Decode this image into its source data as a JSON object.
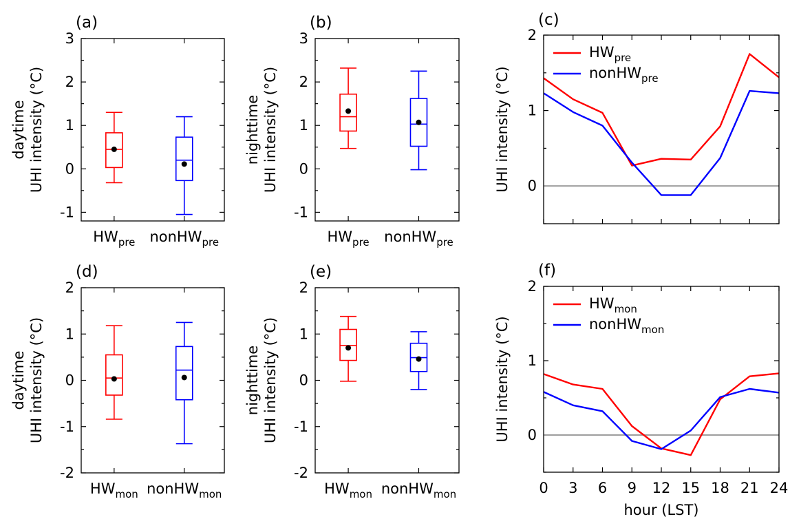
{
  "chart_data": [
    {
      "panel": "(a)",
      "type": "box",
      "ylabel": [
        "daytime",
        "UHI intensity (°C)"
      ],
      "ylim": [
        -1.2,
        3
      ],
      "yticks": [
        -1,
        0,
        1,
        2,
        3
      ],
      "ytick_labels": [
        "-1",
        "0",
        "1",
        "2",
        "3"
      ],
      "groups": [
        {
          "label": "HW",
          "sub": "pre",
          "color": "#ff0000",
          "whisker_low": -0.32,
          "q1": 0.03,
          "median": 0.45,
          "q3": 0.83,
          "whisker_high": 1.3,
          "mean": 0.45
        },
        {
          "label": "nonHW",
          "sub": "pre",
          "color": "#0000ff",
          "whisker_low": -1.05,
          "q1": -0.27,
          "median": 0.2,
          "q3": 0.73,
          "whisker_high": 1.2,
          "mean": 0.11
        }
      ]
    },
    {
      "panel": "(b)",
      "type": "box",
      "ylabel": [
        "nighttime",
        "UHI intensity (°C)"
      ],
      "ylim": [
        -1.2,
        3
      ],
      "yticks": [
        -1,
        0,
        1,
        2,
        3
      ],
      "ytick_labels": [
        "-1",
        "0",
        "1",
        "2",
        "3"
      ],
      "groups": [
        {
          "label": "HW",
          "sub": "pre",
          "color": "#ff0000",
          "whisker_low": 0.47,
          "q1": 0.87,
          "median": 1.2,
          "q3": 1.72,
          "whisker_high": 2.32,
          "mean": 1.33
        },
        {
          "label": "nonHW",
          "sub": "pre",
          "color": "#0000ff",
          "whisker_low": -0.02,
          "q1": 0.52,
          "median": 1.03,
          "q3": 1.62,
          "whisker_high": 2.25,
          "mean": 1.07
        }
      ]
    },
    {
      "panel": "(c)",
      "type": "line",
      "ylabel": "UHI intensity (°C)",
      "ylim": [
        -0.5,
        2
      ],
      "yticks": [
        0,
        1,
        2
      ],
      "ytick_labels": [
        "0",
        "1",
        "2"
      ],
      "x": [
        0,
        3,
        6,
        9,
        12,
        15,
        18,
        21,
        24
      ],
      "xlim": [
        0,
        24
      ],
      "series": [
        {
          "name": "HW",
          "sub": "pre",
          "color": "#ff0000",
          "values": [
            1.43,
            1.15,
            0.97,
            0.27,
            0.36,
            0.35,
            0.79,
            1.75,
            1.44
          ]
        },
        {
          "name": "nonHW",
          "sub": "pre",
          "color": "#0000ff",
          "values": [
            1.23,
            0.98,
            0.8,
            0.31,
            -0.12,
            -0.12,
            0.37,
            1.26,
            1.23
          ]
        }
      ]
    },
    {
      "panel": "(d)",
      "type": "box",
      "ylabel": [
        "daytime",
        "UHI intensity (°C)"
      ],
      "ylim": [
        -2,
        2
      ],
      "yticks": [
        -2,
        -1,
        0,
        1,
        2
      ],
      "ytick_labels": [
        "-2",
        "-1",
        "0",
        "1",
        "2"
      ],
      "groups": [
        {
          "label": "HW",
          "sub": "mon",
          "color": "#ff0000",
          "whisker_low": -0.84,
          "q1": -0.32,
          "median": 0.05,
          "q3": 0.55,
          "whisker_high": 1.18,
          "mean": 0.03
        },
        {
          "label": "nonHW",
          "sub": "mon",
          "color": "#0000ff",
          "whisker_low": -1.37,
          "q1": -0.42,
          "median": 0.22,
          "q3": 0.73,
          "whisker_high": 1.25,
          "mean": 0.06
        }
      ]
    },
    {
      "panel": "(e)",
      "type": "box",
      "ylabel": [
        "nighttime",
        "UHI intensity (°C)"
      ],
      "ylim": [
        -2,
        2
      ],
      "yticks": [
        -2,
        -1,
        0,
        1,
        2
      ],
      "ytick_labels": [
        "-2",
        "-1",
        "0",
        "1",
        "2"
      ],
      "groups": [
        {
          "label": "HW",
          "sub": "mon",
          "color": "#ff0000",
          "whisker_low": -0.02,
          "q1": 0.43,
          "median": 0.75,
          "q3": 1.1,
          "whisker_high": 1.38,
          "mean": 0.7
        },
        {
          "label": "nonHW",
          "sub": "mon",
          "color": "#0000ff",
          "whisker_low": -0.2,
          "q1": 0.19,
          "median": 0.49,
          "q3": 0.8,
          "whisker_high": 1.05,
          "mean": 0.46
        }
      ]
    },
    {
      "panel": "(f)",
      "type": "line",
      "ylabel": "UHI intensity (°C)",
      "xlabel": "hour (LST)",
      "ylim": [
        -0.5,
        2
      ],
      "yticks": [
        0,
        1,
        2
      ],
      "ytick_labels": [
        "0",
        "1",
        "2"
      ],
      "x": [
        0,
        3,
        6,
        9,
        12,
        15,
        18,
        21,
        24
      ],
      "xlim": [
        0,
        24
      ],
      "xtick_labels": [
        "0",
        "3",
        "6",
        "9",
        "12",
        "15",
        "18",
        "21",
        "24"
      ],
      "series": [
        {
          "name": "HW",
          "sub": "mon",
          "color": "#ff0000",
          "values": [
            0.82,
            0.68,
            0.62,
            0.12,
            -0.18,
            -0.27,
            0.48,
            0.79,
            0.83
          ]
        },
        {
          "name": "nonHW",
          "sub": "mon",
          "color": "#0000ff",
          "values": [
            0.58,
            0.4,
            0.32,
            -0.08,
            -0.19,
            0.06,
            0.51,
            0.62,
            0.57
          ]
        }
      ]
    }
  ]
}
